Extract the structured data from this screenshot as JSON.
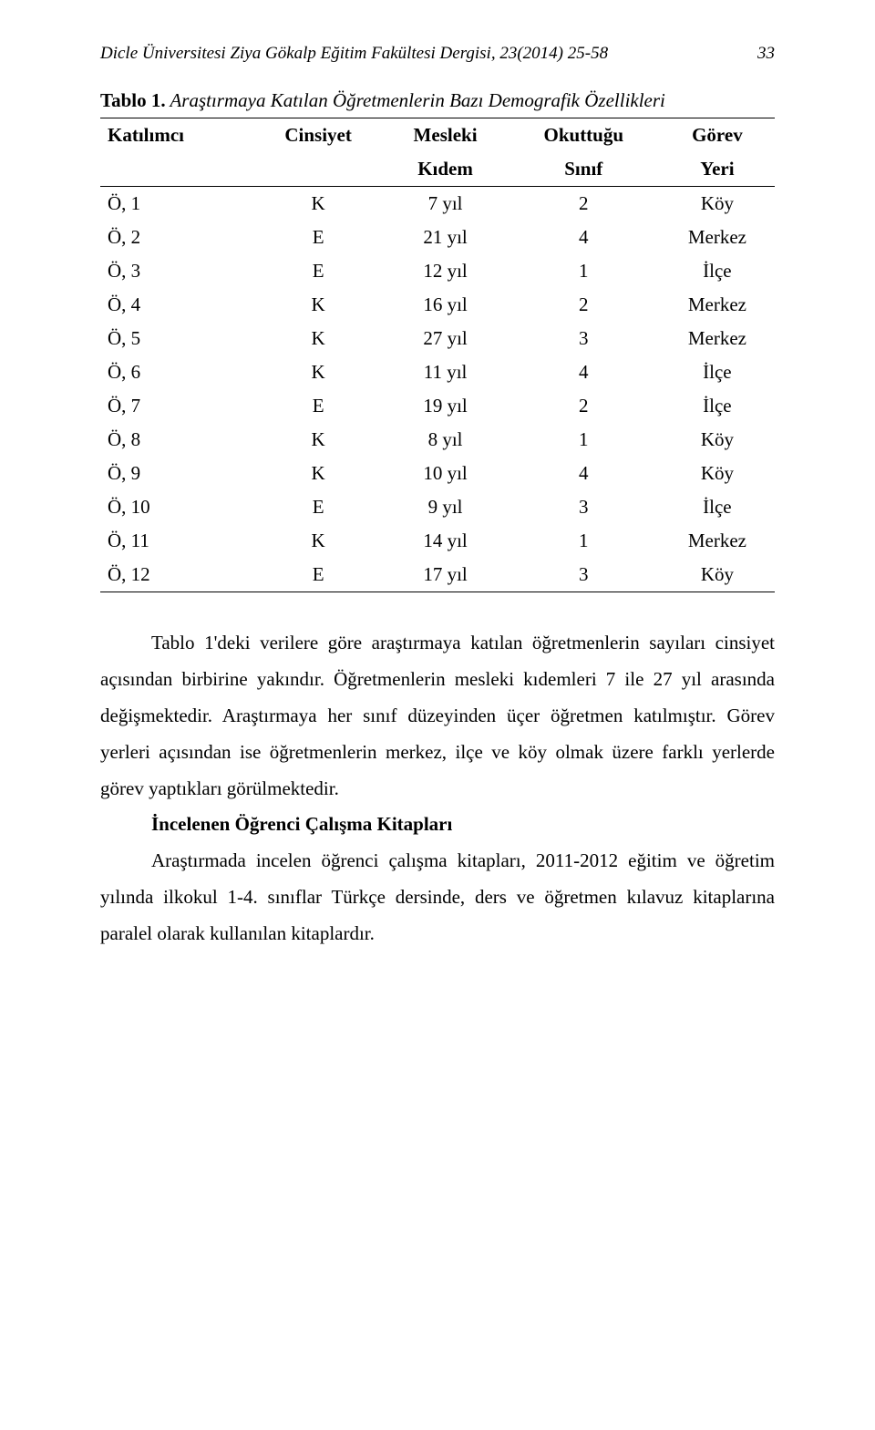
{
  "header": {
    "journal": "Dicle Üniversitesi Ziya Gökalp Eğitim Fakültesi Dergisi, 23(2014) 25-58",
    "page_number": "33"
  },
  "table": {
    "caption_bold": "Tablo 1.",
    "caption_ital": " Araştırmaya Katılan Öğretmenlerin Bazı Demografik Özellikleri",
    "columns_row1": [
      "Katılımcı",
      "Cinsiyet",
      "Mesleki",
      "Okuttuğu",
      "Görev"
    ],
    "columns_row2": [
      "",
      "",
      "Kıdem",
      "Sınıf",
      "Yeri"
    ],
    "rows": [
      [
        "Ö, 1",
        "K",
        "7 yıl",
        "2",
        "Köy"
      ],
      [
        "Ö, 2",
        "E",
        "21 yıl",
        "4",
        "Merkez"
      ],
      [
        "Ö, 3",
        "E",
        "12 yıl",
        "1",
        "İlçe"
      ],
      [
        "Ö, 4",
        "K",
        "16 yıl",
        "2",
        "Merkez"
      ],
      [
        "Ö, 5",
        "K",
        "27 yıl",
        "3",
        "Merkez"
      ],
      [
        "Ö, 6",
        "K",
        "11 yıl",
        "4",
        "İlçe"
      ],
      [
        "Ö, 7",
        "E",
        "19 yıl",
        "2",
        "İlçe"
      ],
      [
        "Ö, 8",
        "K",
        "8 yıl",
        "1",
        "Köy"
      ],
      [
        "Ö, 9",
        "K",
        "10 yıl",
        "4",
        "Köy"
      ],
      [
        "Ö, 10",
        "E",
        "9 yıl",
        "3",
        "İlçe"
      ],
      [
        "Ö, 11",
        "K",
        "14 yıl",
        "1",
        "Merkez"
      ],
      [
        "Ö, 12",
        "E",
        "17 yıl",
        "3",
        "Köy"
      ]
    ]
  },
  "body": {
    "p1": "Tablo 1'deki verilere göre araştırmaya katılan öğretmenlerin sayıları cinsiyet açısından birbirine yakındır. Öğretmenlerin mesleki kıdemleri 7 ile 27 yıl arasında değişmektedir. Araştırmaya her sınıf düzeyinden üçer öğretmen katılmıştır. Görev yerleri açısından ise öğretmenlerin merkez, ilçe ve köy olmak üzere farklı yerlerde görev yaptıkları görülmektedir.",
    "h2": "İncelenen Öğrenci Çalışma Kitapları",
    "p2": "Araştırmada incelen öğrenci çalışma kitapları, 2011-2012 eğitim ve öğretim yılında ilkokul 1-4. sınıflar Türkçe dersinde, ders ve öğretmen kılavuz kitaplarına paralel olarak kullanılan kitaplardır."
  },
  "style": {
    "font_family": "Times New Roman",
    "body_font_size_pt": 12,
    "header_font_size_pt": 11,
    "text_color": "#000000",
    "background_color": "#ffffff"
  }
}
